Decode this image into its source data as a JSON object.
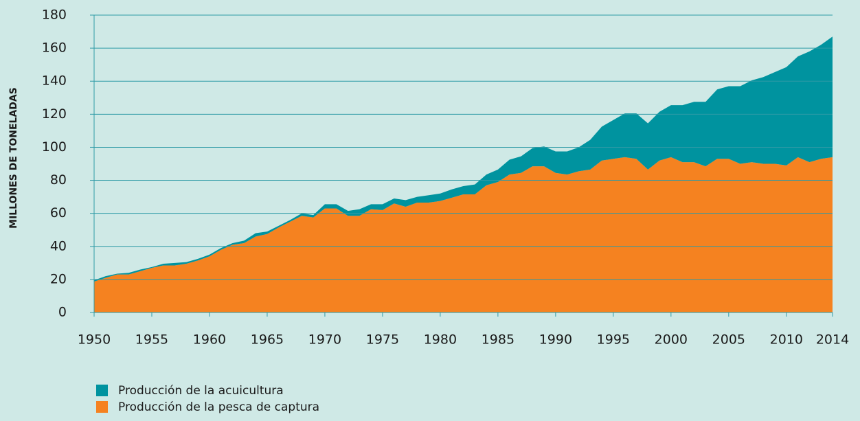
{
  "chart_data": {
    "type": "stacked_area",
    "y_label": "MILLONES DE TONELADAS",
    "x": [
      1950,
      1951,
      1952,
      1953,
      1954,
      1955,
      1956,
      1957,
      1958,
      1959,
      1960,
      1961,
      1962,
      1963,
      1964,
      1965,
      1966,
      1967,
      1968,
      1969,
      1970,
      1971,
      1972,
      1973,
      1974,
      1975,
      1976,
      1977,
      1978,
      1979,
      1980,
      1981,
      1982,
      1983,
      1984,
      1985,
      1986,
      1987,
      1988,
      1989,
      1990,
      1991,
      1992,
      1993,
      1994,
      1995,
      1996,
      1997,
      1998,
      1999,
      2000,
      2001,
      2002,
      2003,
      2004,
      2005,
      2006,
      2007,
      2008,
      2009,
      2010,
      2011,
      2012,
      2013,
      2014
    ],
    "series": [
      {
        "name": "Producción de la acuicultura",
        "color": "#00939f",
        "values": [
          0.8,
          1,
          0.5,
          1,
          1,
          0.5,
          1,
          1.5,
          1,
          1,
          1,
          1,
          1,
          1.5,
          2,
          1.5,
          1,
          1,
          1.5,
          1.5,
          2.5,
          2.5,
          3,
          4,
          3,
          3.5,
          3,
          4,
          3.5,
          4.5,
          4.5,
          5,
          5,
          6,
          6.5,
          7.5,
          9,
          10,
          11,
          12,
          13,
          14,
          14.5,
          18,
          20.5,
          23.5,
          26.5,
          27.5,
          28,
          29.5,
          31.5,
          34.5,
          36.5,
          39,
          42,
          44,
          47,
          49.5,
          52.5,
          55.5,
          59.5,
          61,
          67,
          69,
          73
        ]
      },
      {
        "name": "Producción de la pesca de captura",
        "color": "#f58220",
        "values": [
          18.7,
          21,
          23,
          23,
          25,
          27,
          28.5,
          28.5,
          29.5,
          31.5,
          34,
          38,
          41,
          42,
          46,
          47.5,
          51.5,
          55,
          58.5,
          57.5,
          63,
          63,
          58.5,
          58.5,
          62.5,
          62,
          66,
          64,
          66.5,
          66.5,
          67.5,
          69.5,
          71.5,
          71.5,
          77,
          79,
          83.5,
          84.5,
          88.5,
          88.5,
          84.5,
          83.5,
          85.5,
          86.5,
          92,
          93,
          94,
          93,
          86.5,
          92,
          94,
          91,
          91,
          88.5,
          93,
          93,
          90,
          91,
          90,
          90,
          89,
          94,
          91,
          93,
          94
        ]
      }
    ],
    "xlim": [
      1950,
      2014
    ],
    "xticks": [
      1950,
      1955,
      1960,
      1965,
      1970,
      1975,
      1980,
      1985,
      1990,
      1995,
      2000,
      2005,
      2010,
      2014
    ],
    "ylim": [
      0,
      180
    ],
    "yticks": [
      0,
      20,
      40,
      60,
      80,
      100,
      120,
      140,
      160,
      180
    ],
    "grid": true
  }
}
